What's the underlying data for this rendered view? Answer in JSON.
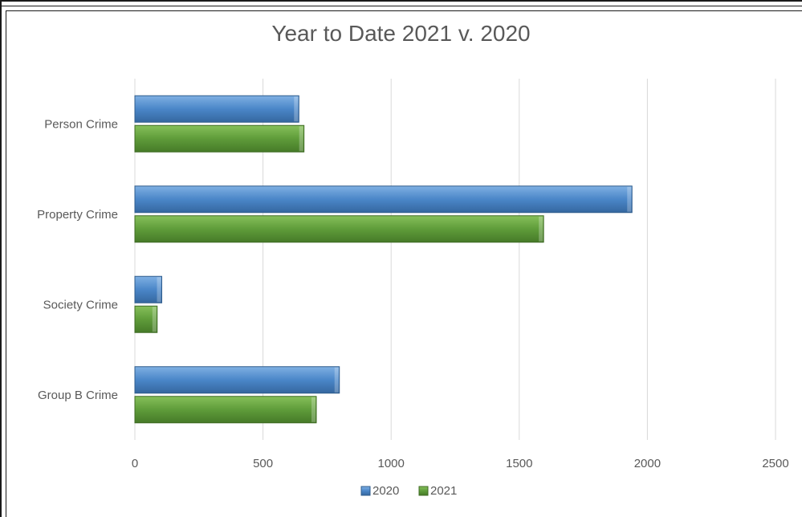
{
  "chart_data": {
    "type": "bar",
    "orientation": "horizontal",
    "title": "Year to Date 2021 v. 2020",
    "categories": [
      "Person Crime",
      "Property Crime",
      "Society Crime",
      "Group B Crime"
    ],
    "series": [
      {
        "name": "2020",
        "values": [
          640,
          1940,
          105,
          798
        ],
        "color": "#4a86c8"
      },
      {
        "name": "2021",
        "values": [
          660,
          1595,
          87,
          708
        ],
        "color": "#5f9c3a"
      }
    ],
    "xlim": [
      0,
      2500
    ],
    "xticks": [
      "0",
      "500",
      "1000",
      "1500",
      "2000",
      "2500"
    ],
    "grid": true,
    "legend_position": "bottom"
  }
}
